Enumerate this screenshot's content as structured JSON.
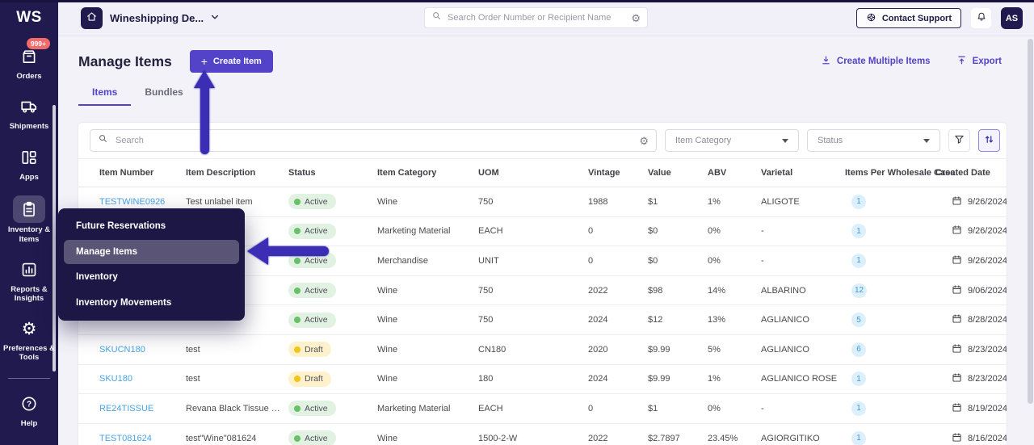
{
  "app": {
    "logo": "WS",
    "org_name": "Wineshipping De...",
    "contact_support_label": "Contact Support",
    "avatar_initials": "AS"
  },
  "header_search": {
    "placeholder": "Search Order Number or Recipient Name"
  },
  "sidebar": {
    "items": [
      {
        "id": "orders",
        "icon": "box",
        "label": "Orders",
        "badge": "999+"
      },
      {
        "id": "shipments",
        "icon": "truck",
        "label": "Shipments"
      },
      {
        "id": "apps",
        "icon": "grid",
        "label": "Apps"
      },
      {
        "id": "inventory-items",
        "icon": "clipboard",
        "label": "Inventory & Items",
        "active": true
      },
      {
        "id": "reports-insights",
        "icon": "chart",
        "label": "Reports & Insights"
      },
      {
        "id": "preferences-tools",
        "icon": "gear",
        "label": "Preferences & Tools",
        "divider_after": true
      },
      {
        "id": "help",
        "icon": "help",
        "label": "Help"
      }
    ]
  },
  "page": {
    "title": "Manage Items",
    "create_item_label": "Create Item",
    "create_multiple_label": "Create Multiple Items",
    "export_label": "Export"
  },
  "tabs": [
    {
      "label": "Items",
      "active": true
    },
    {
      "label": "Bundles",
      "active": false
    }
  ],
  "filters": {
    "search_placeholder": "Search",
    "item_category_label": "Item Category",
    "status_label": "Status"
  },
  "context_menu": {
    "items": [
      {
        "label": "Future Reservations",
        "active": false
      },
      {
        "label": "Manage Items",
        "active": true
      },
      {
        "label": "Inventory",
        "active": false
      },
      {
        "label": "Inventory Movements",
        "active": false
      }
    ]
  },
  "table": {
    "columns": [
      "Item Number",
      "Item Description",
      "Status",
      "Item Category",
      "UOM",
      "Vintage",
      "Value",
      "ABV",
      "Varietal",
      "Items Per Wholesale Case",
      "Created Date"
    ],
    "rows": [
      {
        "item_number": "TESTWINE0926",
        "description": "Test unlabel item",
        "status": "Active",
        "category": "Wine",
        "uom": "750",
        "vintage": "1988",
        "value": "$1",
        "abv": "1%",
        "varietal": "ALIGOTE",
        "items_per_case": "1",
        "created": "9/26/2024"
      },
      {
        "item_number": "",
        "description": "",
        "status": "Active",
        "category": "Marketing Material",
        "uom": "EACH",
        "vintage": "0",
        "value": "$0",
        "abv": "0%",
        "varietal": "-",
        "items_per_case": "1",
        "created": "9/26/2024"
      },
      {
        "item_number": "",
        "description": "",
        "status": "Active",
        "category": "Merchandise",
        "uom": "UNIT",
        "vintage": "0",
        "value": "$0",
        "abv": "0%",
        "varietal": "-",
        "items_per_case": "1",
        "created": "9/26/2024"
      },
      {
        "item_number": "",
        "description": "",
        "status": "Active",
        "category": "Wine",
        "uom": "750",
        "vintage": "2022",
        "value": "$98",
        "abv": "14%",
        "varietal": "ALBARINO",
        "items_per_case": "12",
        "created": "9/06/2024"
      },
      {
        "item_number": "",
        "description": "",
        "status": "Active",
        "category": "Wine",
        "uom": "750",
        "vintage": "2024",
        "value": "$12",
        "abv": "13%",
        "varietal": "AGLIANICO",
        "items_per_case": "5",
        "created": "8/28/2024"
      },
      {
        "item_number": "SKUCN180",
        "description": "test",
        "status": "Draft",
        "category": "Wine",
        "uom": "CN180",
        "vintage": "2020",
        "value": "$9.99",
        "abv": "5%",
        "varietal": "AGLIANICO",
        "items_per_case": "6",
        "created": "8/23/2024"
      },
      {
        "item_number": "SKU180",
        "description": "test",
        "status": "Draft",
        "category": "Wine",
        "uom": "180",
        "vintage": "2024",
        "value": "$9.99",
        "abv": "1%",
        "varietal": "AGLIANICO ROSE",
        "items_per_case": "1",
        "created": "8/23/2024"
      },
      {
        "item_number": "RE24TISSUE",
        "description": "Revana Black Tissue with...",
        "status": "Active",
        "category": "Marketing Material",
        "uom": "EACH",
        "vintage": "0",
        "value": "$1",
        "abv": "0%",
        "varietal": "-",
        "items_per_case": "1",
        "created": "8/19/2024"
      },
      {
        "item_number": "TEST081624",
        "description": "test\"Wine\"081624",
        "status": "Active",
        "category": "Wine",
        "uom": "1500-2-W",
        "vintage": "2022",
        "value": "$2.7897",
        "abv": "23.45%",
        "varietal": "AGIORGITIKO",
        "items_per_case": "1",
        "created": "8/16/2024"
      }
    ]
  },
  "icons": {
    "plus": "+",
    "gear": "⚙"
  },
  "colors": {
    "navy": "#201a4e",
    "accent": "#5243c9",
    "arrow": "#3b2eb5",
    "link": "#4aa3e2",
    "active_dot": "#6abf69",
    "active_bg": "#e1f2e2",
    "draft_dot": "#f3c518",
    "draft_bg": "#fdf2cc",
    "badge_blue_bg": "#ddeffa",
    "badge_blue_text": "#3a9ade",
    "orders_badge": "#f26b6b"
  }
}
